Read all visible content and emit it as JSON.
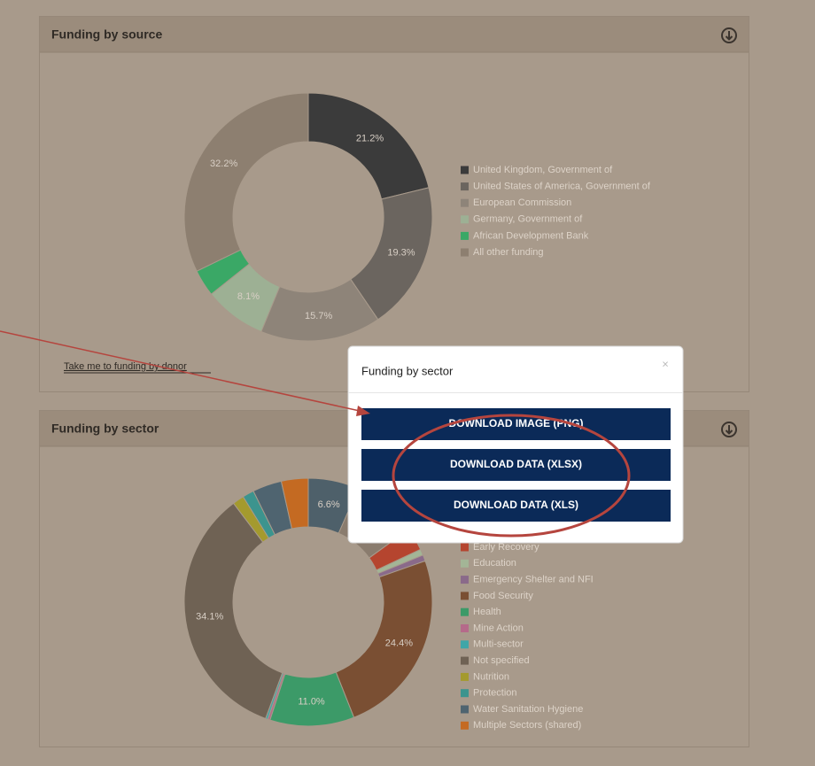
{
  "panels": [
    {
      "title": "Funding by source",
      "link": "Take me to funding by donor",
      "chart": {
        "type": "pie",
        "categories": [
          "United Kingdom, Government of",
          "United States of America, Government of",
          "European Commission",
          "Germany, Government of",
          "African Development Bank",
          "All other funding"
        ],
        "values": [
          21.2,
          19.3,
          15.7,
          8.1,
          3.5,
          32.2
        ],
        "value_labels": [
          "21.2%",
          "19.3%",
          "15.7%",
          "8.1%",
          null,
          "32.2%"
        ],
        "colors": [
          "#3b3b3b",
          "#6b655f",
          "#8e8479",
          "#9db094",
          "#3aa866",
          "#8d7f70"
        ]
      }
    },
    {
      "title": "Funding by sector",
      "chart": {
        "type": "pie",
        "categories": [
          null,
          null,
          "Early Recovery",
          "Education",
          "Emergency Shelter and NFI",
          "Food Security",
          "Health",
          "Mine Action",
          "Multi-sector",
          "Not specified",
          "Nutrition",
          "Protection",
          "Water Sanitation Hygiene",
          "Multiple Sectors (shared)"
        ],
        "values": [
          6.6,
          8.4,
          3.0,
          0.8,
          0.8,
          24.4,
          11.0,
          0.3,
          0.3,
          34.1,
          1.5,
          1.5,
          3.8,
          3.5
        ],
        "value_labels": [
          "6.6%",
          null,
          null,
          null,
          null,
          "24.4%",
          "11.0%",
          null,
          null,
          "34.1%",
          null,
          null,
          null,
          null
        ],
        "colors": [
          "#4e606a",
          "#8a7c6e",
          "#b5452f",
          "#a3b596",
          "#8a6a8a",
          "#7a4f33",
          "#3c9a68",
          "#b56a8a",
          "#3fa6a8",
          "#6f6254",
          "#a49a2e",
          "#3c948e",
          "#4f6470",
          "#c46a22"
        ]
      }
    }
  ],
  "modal": {
    "title": "Funding by sector",
    "close": "×",
    "buttons": [
      "DOWNLOAD IMAGE (PNG)",
      "DOWNLOAD DATA (XLSX)",
      "DOWNLOAD DATA (XLS)"
    ]
  }
}
